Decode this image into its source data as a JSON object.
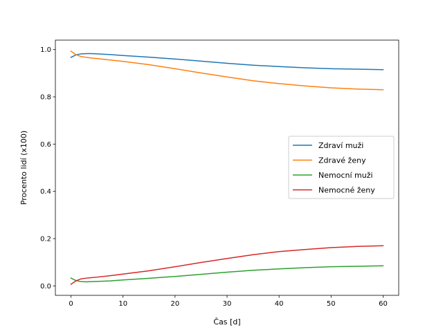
{
  "chart_data": {
    "type": "line",
    "title": "",
    "xlabel": "Čas [d]",
    "ylabel": "Procento lidí (x100)",
    "xlim": [
      -3,
      63
    ],
    "ylim": [
      -0.04,
      1.04
    ],
    "x_ticks": [
      0,
      10,
      20,
      30,
      40,
      50,
      60
    ],
    "y_ticks": [
      0.0,
      0.2,
      0.4,
      0.6,
      0.8,
      1.0
    ],
    "x_tick_labels": [
      "0",
      "10",
      "20",
      "30",
      "40",
      "50",
      "60"
    ],
    "y_tick_labels": [
      "0.0",
      "0.2",
      "0.4",
      "0.6",
      "0.8",
      "1.0"
    ],
    "grid": false,
    "legend": "center-right",
    "x": [
      0,
      1,
      2,
      3,
      4,
      5,
      7.5,
      10,
      15,
      20,
      25,
      30,
      35,
      40,
      45,
      50,
      55,
      60
    ],
    "series": [
      {
        "name": "Zdraví muži",
        "color": "#1f77b4",
        "values": [
          0.967,
          0.978,
          0.982,
          0.983,
          0.983,
          0.982,
          0.979,
          0.975,
          0.968,
          0.96,
          0.951,
          0.942,
          0.934,
          0.928,
          0.923,
          0.919,
          0.917,
          0.915
        ]
      },
      {
        "name": "Zdravé ženy",
        "color": "#ff7f0e",
        "values": [
          0.993,
          0.978,
          0.97,
          0.967,
          0.964,
          0.962,
          0.956,
          0.95,
          0.936,
          0.919,
          0.901,
          0.884,
          0.868,
          0.856,
          0.846,
          0.838,
          0.833,
          0.83
        ]
      },
      {
        "name": "Nemocní muži",
        "color": "#2ca02c",
        "values": [
          0.033,
          0.022,
          0.018,
          0.017,
          0.018,
          0.019,
          0.021,
          0.025,
          0.032,
          0.04,
          0.049,
          0.058,
          0.066,
          0.072,
          0.077,
          0.081,
          0.083,
          0.085
        ]
      },
      {
        "name": "Nemocné ženy",
        "color": "#d62728",
        "values": [
          0.007,
          0.022,
          0.03,
          0.033,
          0.035,
          0.037,
          0.043,
          0.05,
          0.064,
          0.081,
          0.099,
          0.116,
          0.132,
          0.145,
          0.154,
          0.162,
          0.167,
          0.17
        ]
      }
    ]
  }
}
